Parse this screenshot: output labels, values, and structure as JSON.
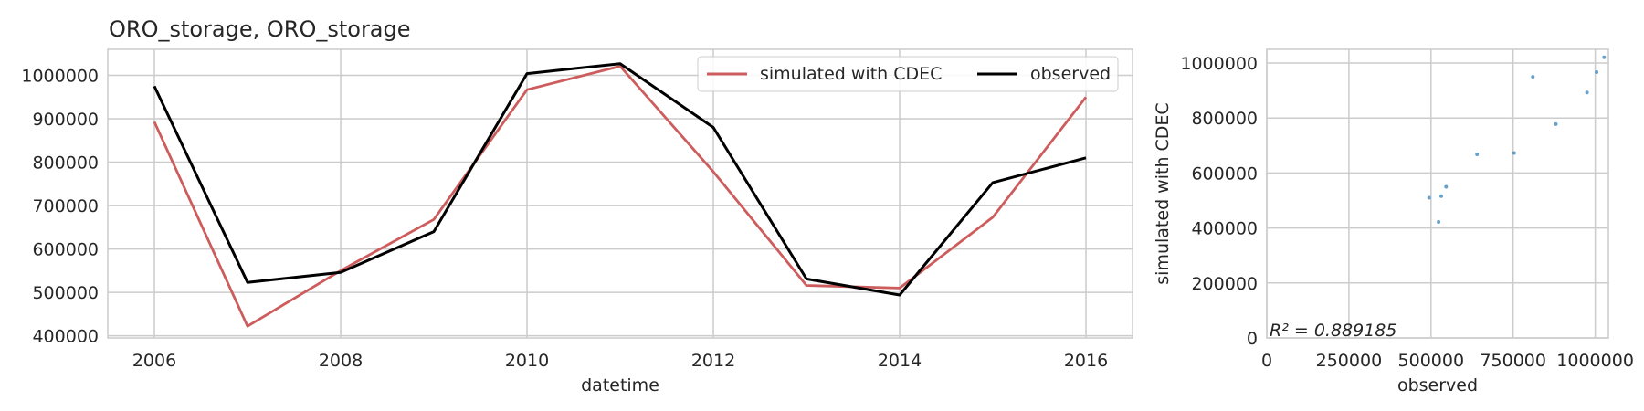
{
  "chart_data": [
    {
      "type": "line",
      "title": "ORO_storage, ORO_storage",
      "xlabel": "datetime",
      "ylabel": "",
      "x": [
        2006,
        2007,
        2008,
        2009,
        2010,
        2011,
        2012,
        2013,
        2014,
        2015,
        2016
      ],
      "xlim": [
        2005.5,
        2016.5
      ],
      "ylim": [
        395000,
        1060000
      ],
      "xticks": [
        "2006",
        "2008",
        "2010",
        "2012",
        "2014",
        "2016"
      ],
      "yticks": [
        "400000",
        "500000",
        "600000",
        "700000",
        "800000",
        "900000",
        "1000000"
      ],
      "grid": true,
      "legend_position": "upper-right",
      "series": [
        {
          "name": "simulated with CDEC",
          "color": "#cd5c5c",
          "values": [
            893000,
            422000,
            550000,
            668000,
            967000,
            1021000,
            778000,
            516000,
            510000,
            673000,
            950000
          ]
        },
        {
          "name": "observed",
          "color": "#000000",
          "values": [
            975000,
            523000,
            546000,
            640000,
            1004000,
            1027000,
            880000,
            531000,
            494000,
            753000,
            810000
          ]
        }
      ]
    },
    {
      "type": "scatter",
      "title": "",
      "xlabel": "observed",
      "ylabel": "simulated with CDEC",
      "xlim": [
        0,
        1040000
      ],
      "ylim": [
        0,
        1050000
      ],
      "xticks": [
        "0",
        "250000",
        "500000",
        "750000",
        "1000000"
      ],
      "yticks": [
        "0",
        "200000",
        "400000",
        "600000",
        "800000",
        "1000000"
      ],
      "grid": true,
      "point_color": "#4c8fc0",
      "annotation": "R² = 0.889185",
      "points": [
        {
          "x": 975000,
          "y": 893000
        },
        {
          "x": 523000,
          "y": 422000
        },
        {
          "x": 546000,
          "y": 550000
        },
        {
          "x": 640000,
          "y": 668000
        },
        {
          "x": 1004000,
          "y": 967000
        },
        {
          "x": 1027000,
          "y": 1021000
        },
        {
          "x": 880000,
          "y": 778000
        },
        {
          "x": 531000,
          "y": 516000
        },
        {
          "x": 494000,
          "y": 510000
        },
        {
          "x": 753000,
          "y": 673000
        },
        {
          "x": 810000,
          "y": 950000
        }
      ]
    }
  ]
}
